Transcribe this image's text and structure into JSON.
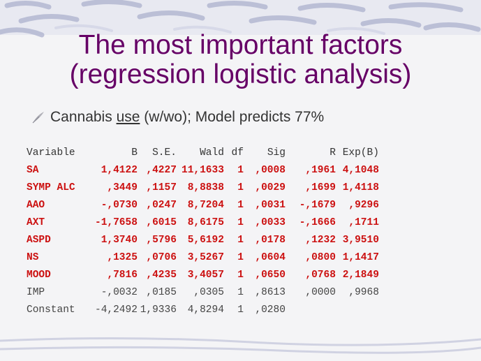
{
  "slide": {
    "title_line1": "The most important factors",
    "title_line2": "(regression logistic analysis)",
    "bullet_icon": "feather-bullet-icon",
    "bullet": {
      "prefix": "Cannabis ",
      "underlined": "use",
      "suffix": " (w/wo); Model predicts 77%"
    }
  },
  "table": {
    "headers": [
      "Variable",
      "B",
      "S.E.",
      "Wald",
      "df",
      "Sig",
      "R",
      "Exp(B)"
    ],
    "rows": [
      {
        "highlight": true,
        "cells": [
          "SA",
          "1,4122",
          ",4227",
          "11,1633",
          "1",
          ",0008",
          ",1961",
          "4,1048"
        ]
      },
      {
        "highlight": true,
        "cells": [
          "SYMP ALC",
          ",3449",
          ",1157",
          "8,8838",
          "1",
          ",0029",
          ",1699",
          "1,4118"
        ]
      },
      {
        "highlight": true,
        "cells": [
          "AAO",
          "-,0730",
          ",0247",
          "8,7204",
          "1",
          ",0031",
          "-,1679",
          ",9296"
        ]
      },
      {
        "highlight": true,
        "cells": [
          "AXT",
          "-1,7658",
          ",6015",
          "8,6175",
          "1",
          ",0033",
          "-,1666",
          ",1711"
        ]
      },
      {
        "highlight": true,
        "cells": [
          "ASPD",
          "1,3740",
          ",5796",
          "5,6192",
          "1",
          ",0178",
          ",1232",
          "3,9510"
        ]
      },
      {
        "highlight": true,
        "cells": [
          "NS",
          ",1325",
          ",0706",
          "3,5267",
          "1",
          ",0604",
          ",0800",
          "1,1417"
        ]
      },
      {
        "highlight": true,
        "cells": [
          "MOOD",
          ",7816",
          ",4235",
          "3,4057",
          "1",
          ",0650",
          ",0768",
          "2,1849"
        ]
      },
      {
        "highlight": false,
        "cells": [
          "IMP",
          "-,0032",
          ",0185",
          ",0305",
          "1",
          ",8613",
          ",0000",
          ",9968"
        ]
      },
      {
        "highlight": false,
        "cells": [
          "Constant",
          "-4,2492",
          "1,9336",
          "4,8294",
          "1",
          ",0280",
          "",
          ""
        ]
      }
    ]
  },
  "colors": {
    "title": "#660066",
    "highlight_rows": "#cc1111",
    "text": "#333333",
    "background": "#f4f4f6",
    "decoration": "#c3c6dc"
  }
}
